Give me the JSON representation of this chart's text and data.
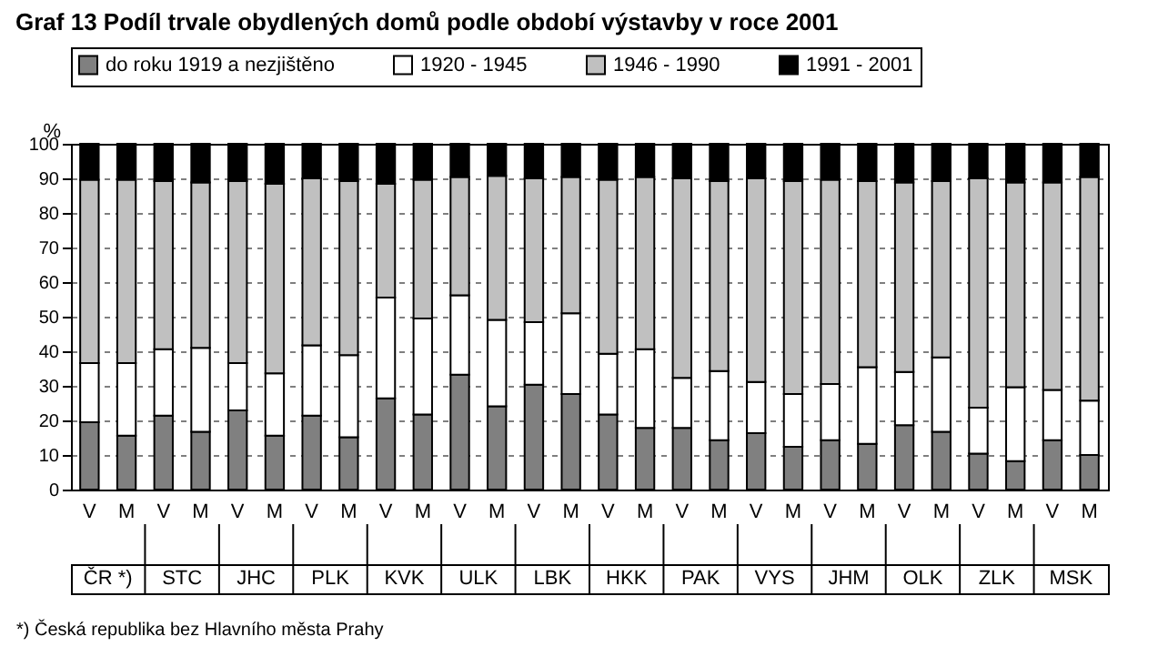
{
  "chart_data": {
    "type": "bar",
    "title": "Graf 13 Podíl trvale obydlených domů podle období výstavby v roce 2001",
    "ylabel": "%",
    "categories": [
      "V",
      "M",
      "V",
      "M",
      "V",
      "M",
      "V",
      "M",
      "V",
      "M",
      "V",
      "M",
      "V",
      "M",
      "V",
      "M",
      "V",
      "M",
      "V",
      "M",
      "V",
      "M",
      "V",
      "M",
      "V",
      "M",
      "V",
      "M"
    ],
    "stacked": true,
    "series": [
      {
        "name": "do roku 1919 a nezjištěno",
        "color": "#808080",
        "values": [
          19.5,
          15.6,
          21.4,
          16.7,
          22.9,
          15.6,
          21.4,
          15.1,
          26.4,
          21.7,
          33.2,
          24.1,
          30.3,
          27.6,
          21.7,
          17.8,
          17.8,
          14.3,
          16.3,
          12.4,
          14.3,
          13.2,
          18.6,
          16.7,
          10.4,
          8.2,
          14.3,
          10.0
        ]
      },
      {
        "name": "1920 - 1945",
        "color": "#ffffff",
        "values": [
          17.1,
          21.0,
          19.2,
          24.3,
          13.7,
          18.0,
          20.3,
          23.8,
          29.1,
          27.8,
          23.0,
          25.0,
          18.1,
          23.4,
          17.6,
          22.8,
          14.5,
          20.0,
          14.8,
          15.2,
          16.2,
          22.2,
          15.4,
          21.5,
          13.3,
          21.4,
          14.5,
          15.7
        ]
      },
      {
        "name": "1946 - 1990",
        "color": "#c0c0c0",
        "values": [
          53.0,
          53.0,
          48.6,
          47.8,
          52.6,
          54.8,
          48.3,
          50.3,
          32.9,
          40.1,
          34.2,
          41.6,
          41.6,
          39.4,
          50.3,
          49.8,
          57.7,
          54.9,
          58.9,
          61.6,
          59.1,
          53.8,
          54.8,
          51.0,
          66.3,
          59.2,
          60.0,
          64.7
        ]
      },
      {
        "name": "1991 - 2001",
        "color": "#000000",
        "values": [
          10.4,
          10.4,
          10.8,
          11.2,
          10.8,
          11.6,
          10.0,
          10.8,
          11.6,
          10.4,
          9.6,
          9.3,
          10.0,
          9.6,
          10.4,
          9.6,
          10.0,
          10.8,
          10.0,
          10.8,
          10.4,
          10.8,
          11.2,
          10.8,
          10.0,
          11.2,
          11.2,
          9.6
        ]
      }
    ],
    "ylim": [
      0,
      100
    ],
    "yticks": [
      0,
      10,
      20,
      30,
      40,
      50,
      60,
      70,
      80,
      90,
      100
    ],
    "grid": "y",
    "legend": "top",
    "annotations": [
      "ČR *)",
      "STC",
      "JHC",
      "PLK",
      "KVK",
      "ULK",
      "LBK",
      "HKK",
      "PAK",
      "VYS",
      "JHM",
      "OLK",
      "ZLK",
      "MSK",
      "*) Česká republika bez Hlavního města Prahy"
    ]
  }
}
